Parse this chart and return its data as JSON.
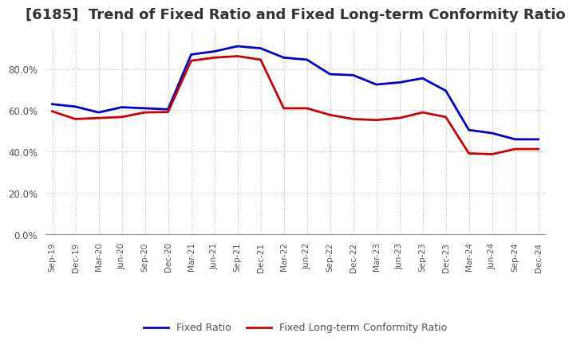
{
  "title": "[6185]  Trend of Fixed Ratio and Fixed Long-term Conformity Ratio",
  "x_labels": [
    "Sep-19",
    "Dec-19",
    "Mar-20",
    "Jun-20",
    "Sep-20",
    "Dec-20",
    "Mar-21",
    "Jun-21",
    "Sep-21",
    "Dec-21",
    "Mar-22",
    "Jun-22",
    "Sep-22",
    "Dec-22",
    "Mar-23",
    "Jun-23",
    "Sep-23",
    "Dec-23",
    "Mar-24",
    "Jun-24",
    "Sep-24",
    "Dec-24"
  ],
  "fixed_ratio": [
    0.63,
    0.618,
    0.59,
    0.615,
    0.61,
    0.605,
    0.87,
    0.885,
    0.91,
    0.9,
    0.855,
    0.845,
    0.775,
    0.77,
    0.725,
    0.735,
    0.755,
    0.695,
    0.505,
    0.49,
    0.46,
    0.46
  ],
  "fixed_lt_ratio": [
    0.595,
    0.558,
    0.563,
    0.568,
    0.59,
    0.592,
    0.84,
    0.855,
    0.862,
    0.845,
    0.61,
    0.61,
    0.578,
    0.558,
    0.553,
    0.563,
    0.59,
    0.568,
    0.392,
    0.388,
    0.413,
    0.413
  ],
  "fixed_ratio_color": "#0000cc",
  "fixed_lt_ratio_color": "#cc0000",
  "ylim": [
    0.0,
    1.0
  ],
  "yticks": [
    0.0,
    0.2,
    0.4,
    0.6,
    0.8
  ],
  "background_color": "#ffffff",
  "plot_bg_color": "#ffffff",
  "grid_color": "#bbbbbb",
  "title_fontsize": 13,
  "title_color": "#333333",
  "tick_color": "#555555",
  "legend_labels": [
    "Fixed Ratio",
    "Fixed Long-term Conformity Ratio"
  ]
}
